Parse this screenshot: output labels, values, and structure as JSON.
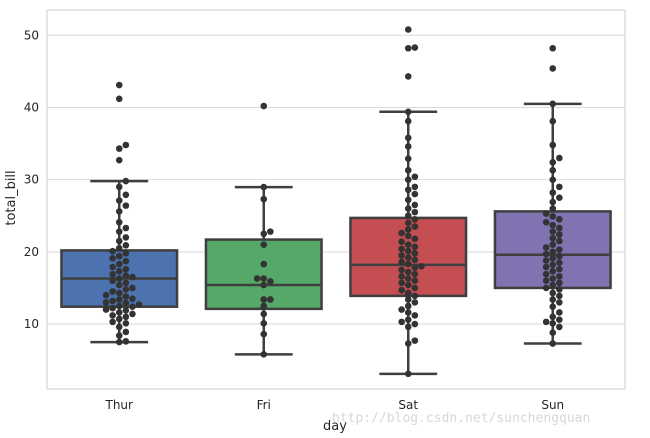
{
  "chart_data": {
    "type": "box",
    "overlay": "swarm",
    "xlabel": "day",
    "ylabel": "total_bill",
    "ylim": [
      1,
      53.5
    ],
    "yticks": [
      10,
      20,
      30,
      40,
      50
    ],
    "grid": "y",
    "categories": [
      "Thur",
      "Fri",
      "Sat",
      "Sun"
    ],
    "box_colors": [
      "#4c72b0",
      "#55a868",
      "#c44e52",
      "#8172b2"
    ],
    "line_color": "#3f3f3f",
    "point_color": "#333333",
    "grid_color": "#d9d9d9",
    "boxes": [
      {
        "min": 7.5,
        "q1": 12.4,
        "median": 16.3,
        "q3": 20.2,
        "max": 29.8
      },
      {
        "min": 5.8,
        "q1": 12.1,
        "median": 15.4,
        "q3": 21.7,
        "max": 28.97
      },
      {
        "min": 3.1,
        "q1": 13.9,
        "median": 18.2,
        "q3": 24.7,
        "max": 39.4
      },
      {
        "min": 7.3,
        "q1": 15.0,
        "median": 19.6,
        "q3": 25.6,
        "max": 40.5
      }
    ],
    "points": [
      [
        7.5,
        7.6,
        8.4,
        8.9,
        9.6,
        10.1,
        10.3,
        10.7,
        11.0,
        11.2,
        11.4,
        11.6,
        11.9,
        12.0,
        12.2,
        12.4,
        12.5,
        12.7,
        12.9,
        13.0,
        13.2,
        13.4,
        13.5,
        13.8,
        14.0,
        14.3,
        14.5,
        14.8,
        15.0,
        15.4,
        15.7,
        16.0,
        16.3,
        16.5,
        16.7,
        16.9,
        17.3,
        17.6,
        17.9,
        18.3,
        18.7,
        19.1,
        19.4,
        19.8,
        20.1,
        20.5,
        20.9,
        21.5,
        22.0,
        22.8,
        23.3,
        24.1,
        25.6,
        26.4,
        27.1,
        27.9,
        29.0,
        29.8,
        32.7,
        34.3,
        34.8,
        41.2,
        43.1
      ],
      [
        5.8,
        8.6,
        10.1,
        11.4,
        12.5,
        13.4,
        13.4,
        15.4,
        15.9,
        16.3,
        16.3,
        18.3,
        21.0,
        22.5,
        22.8,
        27.3,
        28.97,
        40.2
      ],
      [
        3.1,
        7.3,
        7.7,
        9.6,
        10.0,
        10.3,
        10.6,
        11.2,
        11.6,
        12.0,
        12.5,
        13.0,
        13.4,
        13.9,
        14.3,
        14.7,
        15.0,
        15.4,
        15.7,
        16.0,
        16.3,
        16.6,
        16.9,
        17.2,
        17.5,
        17.8,
        18.0,
        18.3,
        18.6,
        18.9,
        19.2,
        19.5,
        19.8,
        20.1,
        20.4,
        20.7,
        21.0,
        21.4,
        21.8,
        22.2,
        22.6,
        23.1,
        23.5,
        24.0,
        24.5,
        25.0,
        25.5,
        26.0,
        26.5,
        27.2,
        28.0,
        28.6,
        29.0,
        30.0,
        30.4,
        31.3,
        32.9,
        34.6,
        35.8,
        38.1,
        39.4,
        44.3,
        48.2,
        48.3,
        50.8
      ],
      [
        7.3,
        8.8,
        9.6,
        10.1,
        10.3,
        10.6,
        11.0,
        11.6,
        12.4,
        13.0,
        13.4,
        13.9,
        14.3,
        14.8,
        15.0,
        15.4,
        15.7,
        16.0,
        16.3,
        16.6,
        16.9,
        17.3,
        17.6,
        17.9,
        18.2,
        18.5,
        18.8,
        19.1,
        19.4,
        19.7,
        20.0,
        20.3,
        20.6,
        21.0,
        21.5,
        21.9,
        22.4,
        22.8,
        23.3,
        23.7,
        24.1,
        24.5,
        24.9,
        25.3,
        26.0,
        26.9,
        27.5,
        28.2,
        29.0,
        30.0,
        31.3,
        32.4,
        33.0,
        34.8,
        38.1,
        40.5,
        45.4,
        48.2
      ]
    ]
  },
  "watermark": "http://blog.csdn.net/sunchengquan"
}
